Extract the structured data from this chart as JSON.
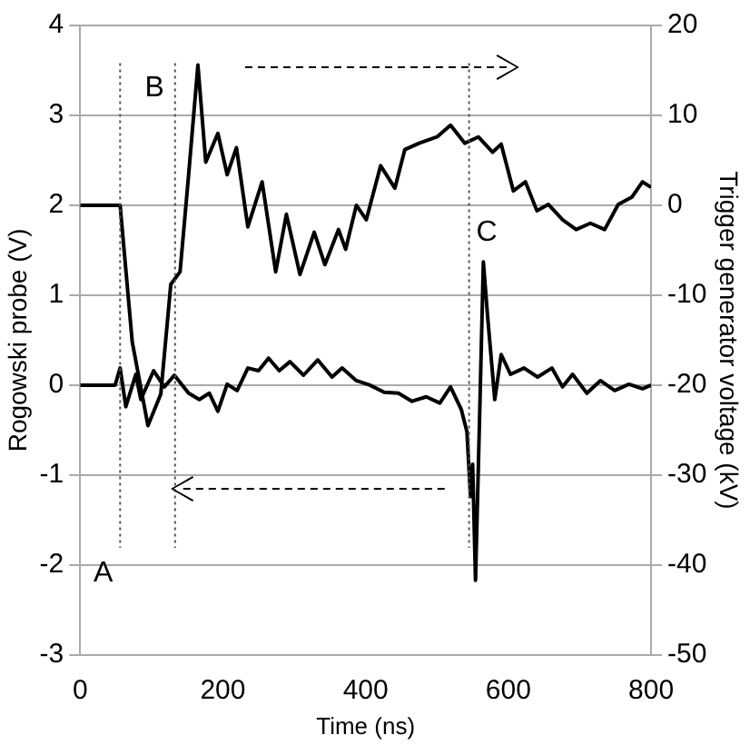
{
  "chart_data": {
    "type": "line",
    "xlabel": "Time (ns)",
    "ylabel": "Rogowski probe (V)",
    "y2label": "Trigger generator voltage (kV)",
    "xlim": [
      0,
      800
    ],
    "xticks": [
      0,
      200,
      400,
      600,
      800
    ],
    "ylim": [
      -3,
      4
    ],
    "yticks": [
      -3,
      -2,
      -1,
      0,
      1,
      2,
      3,
      4
    ],
    "y2lim": [
      -50,
      20
    ],
    "y2ticks": [
      -50,
      -40,
      -30,
      -20,
      -10,
      0,
      10,
      20
    ],
    "grid": "y",
    "legend": false,
    "marker": "none",
    "line_style": "solid",
    "series": [
      {
        "color": "#000000",
        "x": [
          0,
          49,
          56,
          64,
          78,
          85,
          103,
          118,
          132,
          152,
          167,
          181,
          193,
          206,
          220,
          235,
          250,
          264,
          279,
          294,
          313,
          333,
          353,
          367,
          387,
          406,
          426,
          446,
          465,
          485,
          504,
          519,
          534,
          542,
          547,
          550,
          554,
          561,
          565,
          571,
          581,
          590,
          603,
          622,
          641,
          661,
          676,
          690,
          710,
          729,
          749,
          769,
          788,
          800
        ],
        "values": [
          0,
          0,
          0.19,
          -0.24,
          0.12,
          -0.16,
          0.16,
          -0.02,
          0.11,
          -0.09,
          -0.16,
          -0.09,
          -0.29,
          0.01,
          -0.06,
          0.19,
          0.16,
          0.3,
          0.16,
          0.26,
          0.11,
          0.28,
          0.09,
          0.19,
          0.05,
          0,
          -0.08,
          -0.09,
          -0.18,
          -0.13,
          -0.2,
          -0.02,
          -0.27,
          -0.52,
          -1.24,
          -0.88,
          -2.17,
          0.05,
          1.37,
          0.76,
          -0.16,
          0.34,
          0.12,
          0.19,
          0.09,
          0.19,
          -0.02,
          0.12,
          -0.09,
          0.05,
          -0.06,
          0.01,
          -0.04,
          0
        ]
      },
      {
        "color": "#000000",
        "axis": "y2",
        "x": [
          0,
          56,
          73,
          95,
          113,
          127,
          140,
          152,
          165,
          176,
          193,
          206,
          219,
          235,
          255,
          274,
          289,
          308,
          328,
          343,
          362,
          372,
          387,
          401,
          421,
          441,
          455,
          475,
          500,
          519,
          539,
          558,
          578,
          590,
          607,
          624,
          640,
          656,
          676,
          695,
          715,
          735,
          754,
          773,
          788,
          800
        ],
        "values": [
          0,
          0,
          -15.2,
          -24.5,
          -21,
          -8.8,
          -7.4,
          3.4,
          15.6,
          4.8,
          8,
          3.4,
          6.4,
          -2.4,
          2.6,
          -7.4,
          -1,
          -7.7,
          -3,
          -6.6,
          -2.7,
          -4.9,
          0,
          -1.6,
          4.4,
          1.9,
          6.2,
          6.9,
          7.6,
          8.9,
          6.9,
          7.6,
          5.9,
          6.8,
          1.6,
          2.6,
          -0.6,
          0.1,
          -1.6,
          -2.7,
          -2,
          -2.7,
          0.1,
          0.9,
          2.6,
          2
        ]
      }
    ],
    "ref_lines": [
      {
        "axis": "x",
        "value": 56,
        "label": "A",
        "line_style": "dotted",
        "color": "#555555"
      },
      {
        "axis": "x",
        "value": 133,
        "label": "B",
        "line_style": "dotted",
        "color": "#555555"
      },
      {
        "axis": "x",
        "value": 545,
        "label": "C",
        "line_style": "dotted",
        "color": "#555555"
      }
    ]
  }
}
